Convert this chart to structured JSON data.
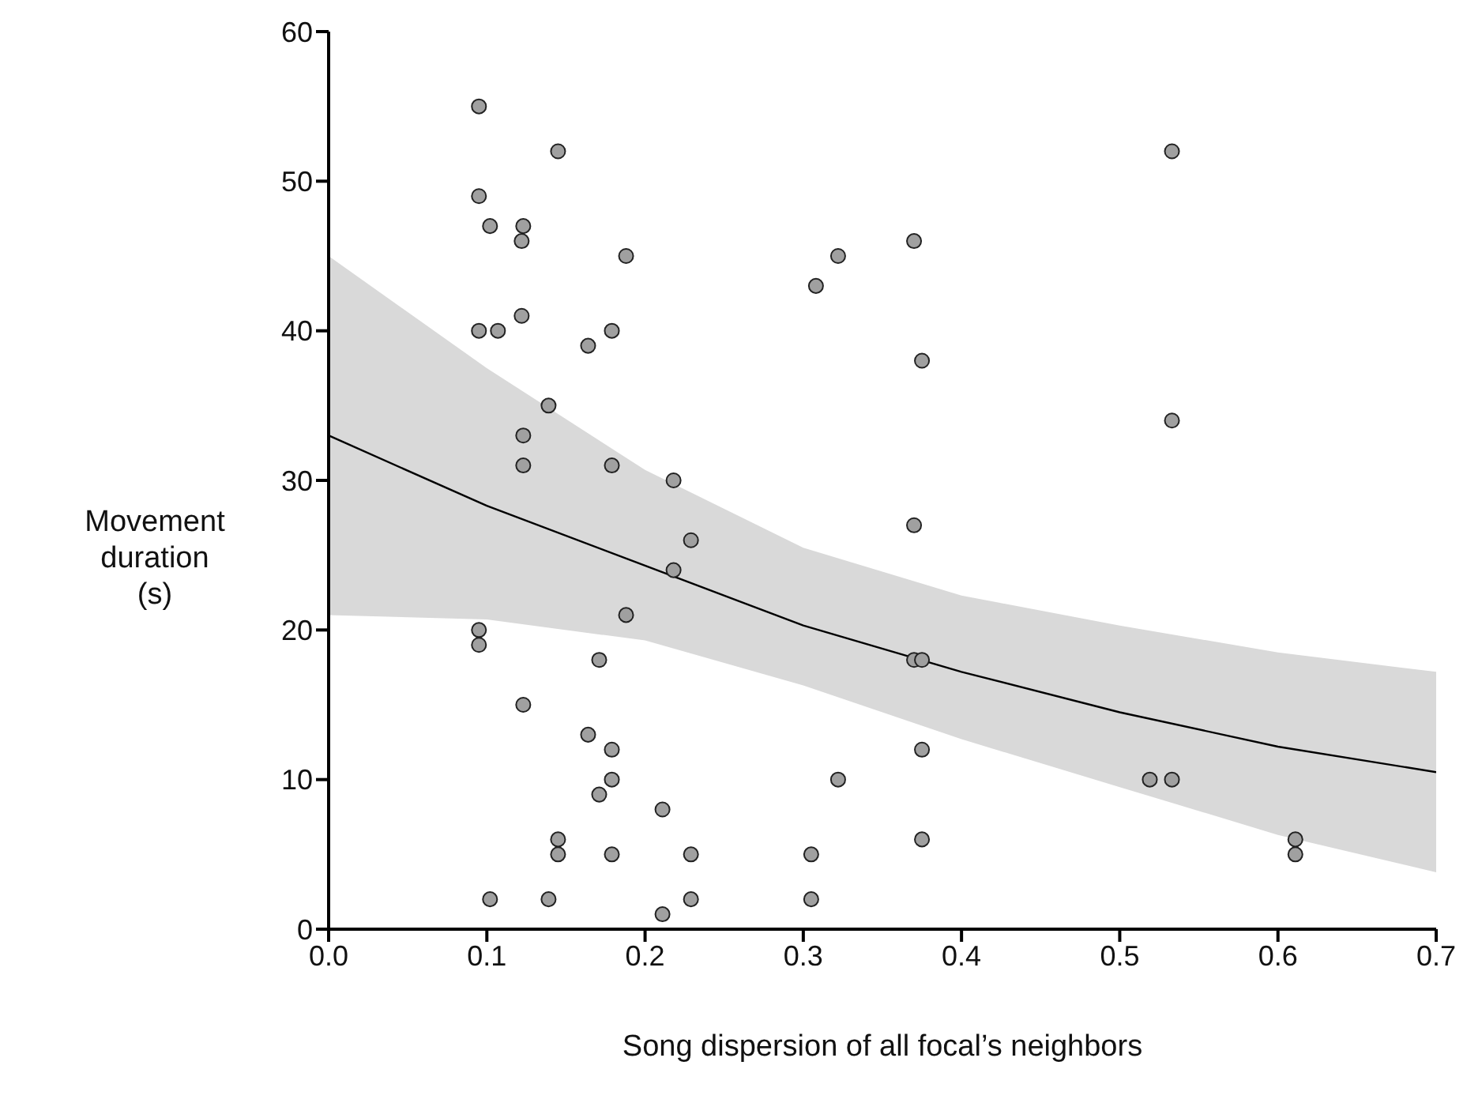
{
  "chart_data": {
    "type": "scatter",
    "xlabel": "Song dispersion of all focal’s neighbors",
    "ylabel": "Movement duration (s)",
    "xlim": [
      0,
      0.7
    ],
    "xticks": [
      {
        "value": 0,
        "label": "0.0"
      },
      0.1,
      0.2,
      0.3,
      0.4,
      0.5,
      0.6,
      0.7
    ],
    "ylim": [
      0,
      60
    ],
    "yticks": [
      0,
      10,
      20,
      30,
      40,
      50,
      60
    ],
    "grid": false,
    "marker": "circle",
    "series": [
      {
        "color": "#a0a0a0",
        "x": [
          0.095,
          0.145,
          0.095,
          0.102,
          0.123,
          0.122,
          0.188,
          0.122,
          0.095,
          0.107,
          0.179,
          0.164,
          0.139,
          0.123,
          0.123,
          0.179,
          0.218,
          0.229,
          0.218,
          0.188,
          0.095,
          0.095,
          0.171,
          0.123,
          0.164,
          0.179,
          0.179,
          0.171,
          0.211,
          0.145,
          0.145,
          0.179,
          0.229,
          0.102,
          0.139,
          0.229,
          0.211,
          0.322,
          0.308,
          0.37,
          0.375,
          0.37,
          0.37,
          0.375,
          0.375,
          0.322,
          0.375,
          0.305,
          0.305,
          0.533,
          0.533,
          0.519,
          0.533,
          0.611,
          0.611
        ],
        "values": [
          55,
          52,
          49,
          47,
          47,
          46,
          45,
          41,
          40,
          40,
          40,
          39,
          35,
          33,
          31,
          31,
          30,
          26,
          24,
          21,
          20,
          19,
          18,
          15,
          13,
          12,
          10,
          9,
          8,
          6,
          5,
          5,
          5,
          2,
          2,
          2,
          1,
          45,
          43,
          46,
          38,
          27,
          18,
          18,
          12,
          10,
          6,
          5,
          2,
          52,
          34,
          10,
          10,
          6,
          5
        ]
      },
      {
        "type": "line",
        "color": "#000000",
        "marker": "none",
        "x": [
          0,
          0.1,
          0.2,
          0.3,
          0.4,
          0.5,
          0.6,
          0.7
        ],
        "values": [
          33,
          28.3,
          24.3,
          20.3,
          17.2,
          14.5,
          12.2,
          10.5
        ],
        "lower": [
          21,
          20.7,
          19.3,
          16.3,
          12.7,
          9.5,
          6.3,
          3.8
        ],
        "upper": [
          45,
          37.5,
          30.7,
          25.5,
          22.3,
          20.3,
          18.5,
          17.2
        ]
      }
    ]
  }
}
